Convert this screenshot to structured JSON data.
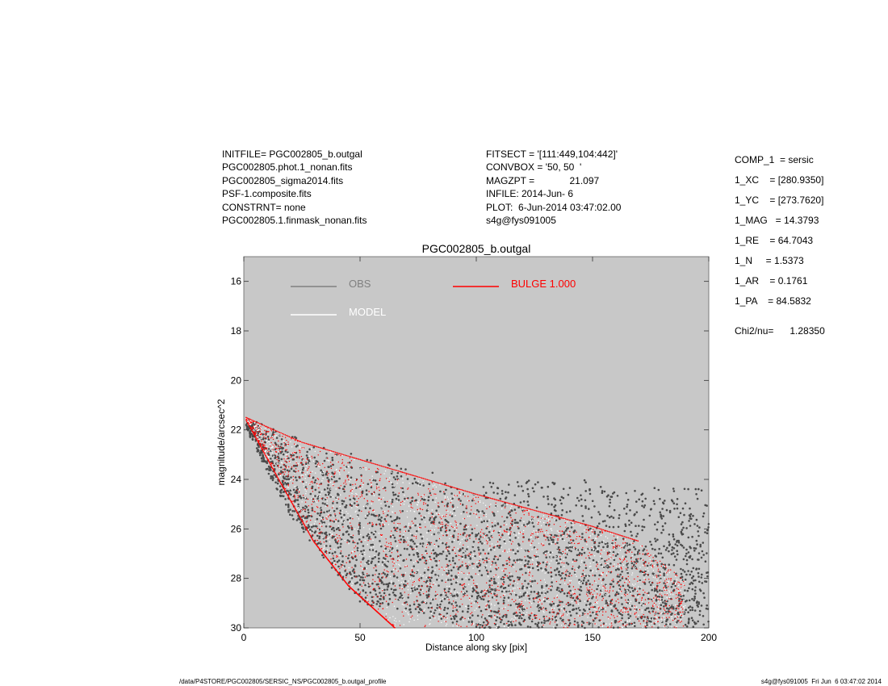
{
  "header_left": [
    "INITFILE= PGC002805_b.outgal",
    "PGC002805.phot.1_nonan.fits",
    "PGC002805_sigma2014.fits",
    "PSF-1.composite.fits",
    "CONSTRNT= none",
    "PGC002805.1.finmask_nonan.fits"
  ],
  "header_mid": [
    "FITSECT = '[111:449,104:442]'",
    "CONVBOX = '50, 50  '",
    "MAGZPT =             21.097",
    "INFILE: 2014-Jun- 6",
    "PLOT:  6-Jun-2014 03:47:02.00",
    "s4g@fys091005"
  ],
  "params": [
    "COMP_1  = sersic",
    "1_XC    = [280.9350]",
    "1_YC    = [273.7620]",
    "1_MAG   = 14.3793",
    "1_RE    = 64.7043",
    "1_N     = 1.5373",
    "1_AR    = 0.1761",
    "1_PA    = 84.5832"
  ],
  "chi2": "Chi2/nu=      1.28350",
  "footer_left": "/data/P4STORE/PGC002805/SERSIC_NS/PGC002805_b.outgal_profile",
  "footer_right": "s4g@fys091005  Fri Jun  6 03:47:02 2014",
  "colors": {
    "plot_bg": "#c8c8c8",
    "obs": "#4a4a4a",
    "model": "#ffffff",
    "bulge": "#ff0000",
    "obs_legend": "#808080"
  },
  "chart_data": {
    "type": "scatter",
    "title": "PGC002805_b.outgal",
    "xlabel": "Distance along sky [pix]",
    "ylabel": "magnitude/arcsec^2",
    "xlim": [
      0,
      200
    ],
    "ylim": [
      30,
      15
    ],
    "y_inverted": true,
    "xticks": [
      0,
      50,
      100,
      150,
      200
    ],
    "yticks": [
      16,
      18,
      20,
      22,
      24,
      26,
      28,
      30
    ],
    "legend": [
      {
        "label": "OBS",
        "color": "#808080"
      },
      {
        "label": "MODEL",
        "color": "#ffffff"
      },
      {
        "label": "BULGE  1.000",
        "color": "#ff0000"
      }
    ],
    "series": [
      {
        "name": "OBS",
        "color": "#4a4a4a",
        "envelope_x": [
          1,
          20,
          50,
          100,
          150,
          200
        ],
        "envelope_y_bright": [
          21.5,
          22.2,
          23.0,
          24.0,
          24.0,
          24.3
        ],
        "envelope_y_faint": [
          22.0,
          25.5,
          29.0,
          30,
          30,
          30
        ]
      },
      {
        "name": "MODEL",
        "color": "#ffffff",
        "upper_edge": {
          "x": [
            1,
            25,
            50,
            100,
            150,
            170
          ],
          "y": [
            21.5,
            22.5,
            23.2,
            24.6,
            25.9,
            26.5
          ]
        },
        "lower_edge": {
          "x": [
            1,
            15,
            30,
            45,
            65
          ],
          "y": [
            21.6,
            24.0,
            26.5,
            28.3,
            30
          ]
        }
      },
      {
        "name": "BULGE  1.000",
        "color": "#ff0000",
        "upper_edge": {
          "x": [
            1,
            25,
            50,
            100,
            150,
            170
          ],
          "y": [
            21.5,
            22.5,
            23.2,
            24.6,
            25.9,
            26.5
          ]
        },
        "lower_edge": {
          "x": [
            1,
            15,
            30,
            45,
            65
          ],
          "y": [
            21.6,
            24.0,
            26.5,
            28.3,
            30
          ]
        }
      }
    ]
  }
}
